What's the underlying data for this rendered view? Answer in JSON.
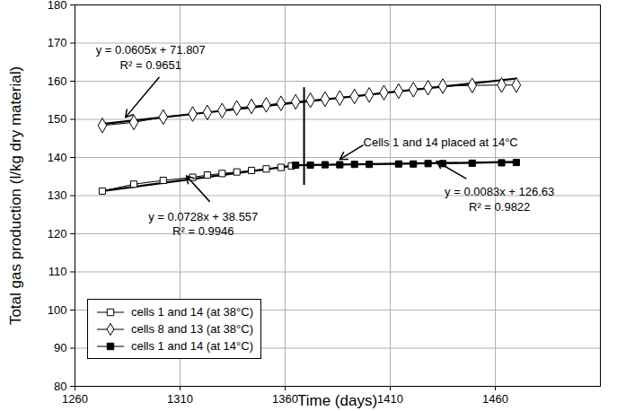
{
  "chart_data": {
    "type": "line",
    "x_label": "Time (days)",
    "y_label": "Total gas production (l/kg dry material)",
    "xlim": [
      1260,
      1510
    ],
    "xticks": [
      1260,
      1310,
      1360,
      1410,
      1460
    ],
    "ylim": [
      80,
      180
    ],
    "yticks": [
      80,
      90,
      100,
      110,
      120,
      130,
      140,
      150,
      160,
      170,
      180
    ],
    "grid": true,
    "legend": "bottom-left",
    "series": [
      {
        "name": "cells 1 and 14 (at 38°C)",
        "color": "#000000",
        "marker": "open_square",
        "line_style": "solid",
        "x": [
          1273,
          1288,
          1302,
          1316,
          1323,
          1330,
          1337,
          1344,
          1351,
          1358,
          1363
        ],
        "values": [
          131.2,
          133,
          134,
          134.8,
          135.4,
          135.8,
          136.2,
          136.6,
          137,
          137.4,
          137.8
        ]
      },
      {
        "name": "cells 8 and 13 (at 38°C)",
        "color": "#000000",
        "marker": "open_diamond",
        "line_style": "solid",
        "x": [
          1273,
          1288,
          1302,
          1316,
          1323,
          1330,
          1337,
          1344,
          1351,
          1358,
          1365,
          1372,
          1379,
          1386,
          1393,
          1400,
          1407,
          1414,
          1421,
          1428,
          1435,
          1449,
          1463,
          1470
        ],
        "values": [
          148.4,
          149.2,
          150.6,
          151.4,
          151.8,
          152.3,
          153,
          153.4,
          153.8,
          154.2,
          154.6,
          155,
          155.3,
          155.6,
          156,
          156.4,
          157,
          157.4,
          157.8,
          158.3,
          158.7,
          158.9,
          159,
          159
        ]
      },
      {
        "name": "cells 1 and 14 (at 14°C)",
        "color": "#000000",
        "marker": "filled_square",
        "line_style": "solid",
        "x": [
          1365,
          1372,
          1379,
          1386,
          1393,
          1400,
          1414,
          1421,
          1428,
          1435,
          1449,
          1463,
          1470
        ],
        "values": [
          138,
          138,
          138.1,
          138.1,
          138.2,
          138.2,
          138.3,
          138.3,
          138.4,
          138.4,
          138.5,
          138.6,
          138.7
        ]
      }
    ],
    "trend_lines": [
      {
        "x": [
          1273,
          1470
        ],
        "values": [
          148.8,
          160.7
        ]
      },
      {
        "x": [
          1273,
          1363
        ],
        "values": [
          131.2,
          137.8
        ]
      },
      {
        "x": [
          1365,
          1470
        ],
        "values": [
          137.96,
          138.83
        ]
      }
    ],
    "marker_line": {
      "x": 1369,
      "y": [
        132.7,
        158.3
      ]
    },
    "annotations": [
      {
        "lines": [
          "y = 0.0605x + 71.807",
          "R² = 0.9651"
        ],
        "x": 1296,
        "y": 166.4,
        "arrow_from": [
          1300,
          161
        ],
        "arrow_to": [
          1284,
          150.5
        ]
      },
      {
        "lines": [
          "y = 0.0728x + 38.557",
          "R² = 0.9946"
        ],
        "x": 1321,
        "y": 122.7,
        "arrow_from": [
          1324,
          128.5
        ],
        "arrow_to": [
          1313,
          135.2
        ]
      },
      {
        "lines": [
          "y = 0.0083x + 126.63",
          "R² = 0.9822"
        ],
        "x": 1462,
        "y": 129.2,
        "arrow_from": [
          1446,
          134.5
        ],
        "arrow_to": [
          1432,
          139
        ]
      },
      {
        "lines": [
          "Cells 1 and 14 placed at 14°C"
        ],
        "x": 1434,
        "y": 144.2,
        "arrow_from": [
          1397,
          143.2
        ],
        "arrow_to": [
          1386,
          139.5
        ]
      }
    ]
  }
}
